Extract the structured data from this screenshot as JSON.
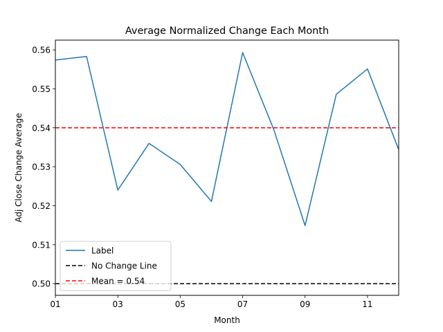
{
  "chart_data": {
    "type": "line",
    "title": "Average Normalized Change Each Month",
    "xlabel": "Month",
    "ylabel": "Adj Close Change Average",
    "x": [
      1,
      2,
      3,
      4,
      5,
      6,
      7,
      8,
      9,
      10,
      11,
      12
    ],
    "xlim": [
      1,
      12
    ],
    "ylim": [
      0.497,
      0.5625
    ],
    "x_ticks": [
      {
        "value": 1,
        "label": "01"
      },
      {
        "value": 3,
        "label": "03"
      },
      {
        "value": 5,
        "label": "05"
      },
      {
        "value": 7,
        "label": "07"
      },
      {
        "value": 9,
        "label": "09"
      },
      {
        "value": 11,
        "label": "11"
      }
    ],
    "y_ticks": [
      {
        "value": 0.5,
        "label": "0.50"
      },
      {
        "value": 0.51,
        "label": "0.51"
      },
      {
        "value": 0.52,
        "label": "0.52"
      },
      {
        "value": 0.53,
        "label": "0.53"
      },
      {
        "value": 0.54,
        "label": "0.54"
      },
      {
        "value": 0.55,
        "label": "0.55"
      },
      {
        "value": 0.56,
        "label": "0.56"
      }
    ],
    "series": [
      {
        "name": "Label",
        "color": "#1f77b4",
        "style": "solid",
        "values": [
          0.5574,
          0.5583,
          0.524,
          0.536,
          0.5306,
          0.5211,
          0.5593,
          0.5395,
          0.5149,
          0.5486,
          0.5551,
          0.5344
        ]
      }
    ],
    "reference_lines": [
      {
        "name": "No Change Line",
        "y": 0.5,
        "color": "#000000",
        "style": "dashed"
      },
      {
        "name": "Mean = 0.54",
        "y": 0.54,
        "color": "#ff0000",
        "style": "dashed"
      }
    ],
    "legend": {
      "placement": "lower-left",
      "entries": [
        {
          "label": "Label",
          "color": "#1f77b4",
          "style": "solid"
        },
        {
          "label": "No Change Line",
          "color": "#000000",
          "style": "dashed"
        },
        {
          "label": "Mean = 0.54",
          "color": "#ff0000",
          "style": "dashed"
        }
      ]
    },
    "grid": false
  }
}
